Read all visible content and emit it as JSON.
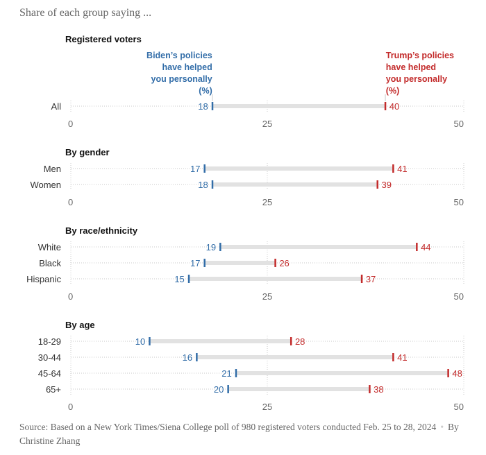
{
  "subtitle": "Share of each group saying ...",
  "colors": {
    "biden": "#326da8",
    "trump": "#c32b2b",
    "range_bar": "#e2e2e2",
    "grid": "#c8c8c8"
  },
  "key": {
    "biden_label": [
      "Biden’s policies",
      "have helped",
      "you personally",
      "(%)"
    ],
    "trump_label": [
      "Trump’s policies",
      "have helped",
      "you personally",
      "(%)"
    ]
  },
  "chart_data": {
    "type": "dumbbell",
    "title": "Share of each group saying ...",
    "series": [
      {
        "name": "Biden’s policies have helped you personally (%)",
        "key": "biden"
      },
      {
        "name": "Trump’s policies have helped you personally (%)",
        "key": "trump"
      }
    ],
    "xlim": [
      0,
      50
    ],
    "ticks": [
      0,
      25,
      50
    ],
    "panels": [
      {
        "title": "Registered voters",
        "rows": [
          {
            "label": "All",
            "biden": 18,
            "trump": 40
          }
        ]
      },
      {
        "title": "By gender",
        "rows": [
          {
            "label": "Men",
            "biden": 17,
            "trump": 41
          },
          {
            "label": "Women",
            "biden": 18,
            "trump": 39
          }
        ]
      },
      {
        "title": "By race/ethnicity",
        "rows": [
          {
            "label": "White",
            "biden": 19,
            "trump": 44
          },
          {
            "label": "Black",
            "biden": 17,
            "trump": 26
          },
          {
            "label": "Hispanic",
            "biden": 15,
            "trump": 37
          }
        ]
      },
      {
        "title": "By age",
        "rows": [
          {
            "label": "18-29",
            "biden": 10,
            "trump": 28
          },
          {
            "label": "30-44",
            "biden": 16,
            "trump": 41
          },
          {
            "label": "45-64",
            "biden": 21,
            "trump": 48
          },
          {
            "label": "65+",
            "biden": 20,
            "trump": 38
          }
        ]
      }
    ]
  },
  "source": {
    "text": "Source: Based on a New York Times/Siena College poll of 980 registered voters conducted Feb. 25 to 28, 2024",
    "separator": "•",
    "byline": "By Christine Zhang"
  }
}
